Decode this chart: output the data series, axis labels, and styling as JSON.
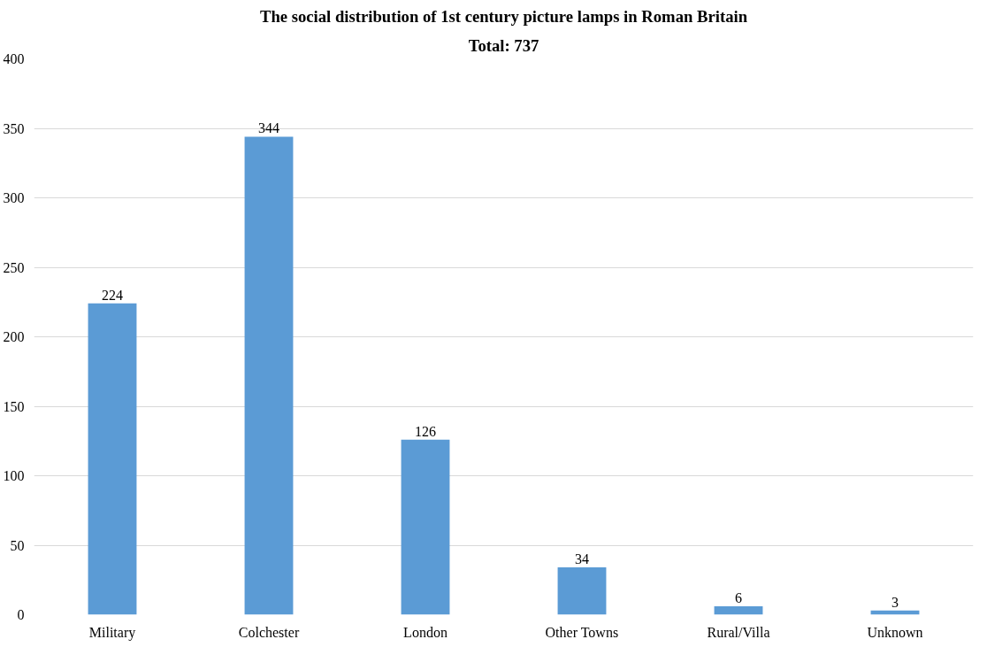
{
  "chart_data": {
    "type": "bar",
    "title": "The social distribution of 1st century picture lamps in Roman Britain",
    "subtitle": "Total: 737",
    "categories": [
      "Military",
      "Colchester",
      "London",
      "Other Towns",
      "Rural/Villa",
      "Unknown"
    ],
    "values": [
      224,
      344,
      126,
      34,
      6,
      3
    ],
    "color": "#5b9bd5",
    "ylim": [
      0,
      400
    ],
    "yticks": [
      0,
      50,
      100,
      150,
      200,
      250,
      300,
      350,
      400
    ],
    "grid": "y",
    "data_labels": true
  }
}
